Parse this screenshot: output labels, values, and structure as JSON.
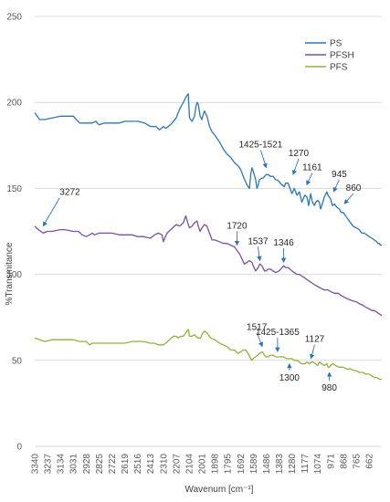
{
  "chart_data": {
    "type": "line",
    "title": "",
    "xlabel": "Wavenum [cm⁻¹]",
    "ylabel": "%Transmitance",
    "ylim": [
      0,
      250
    ],
    "yticks": [
      0,
      50,
      100,
      150,
      200,
      250
    ],
    "xlim": [
      3340,
      560
    ],
    "x_reversed": true,
    "xticks": [
      "3340",
      "3237",
      "3134",
      "3031",
      "2928",
      "2825",
      "2722",
      "2619",
      "2516",
      "2413",
      "2310",
      "2207",
      "2104",
      "2001",
      "1898",
      "1795",
      "1692",
      "1589",
      "1486",
      "1383",
      "1280",
      "1177",
      "1074",
      "971",
      "868",
      "765",
      "662"
    ],
    "grid": "horizontal",
    "legend_position": "top-right",
    "series": [
      {
        "name": "PS",
        "color": "#2E75B6",
        "x": [
          3340,
          3300,
          3260,
          3200,
          3134,
          3080,
          3031,
          2980,
          2928,
          2880,
          2850,
          2825,
          2780,
          2722,
          2660,
          2619,
          2560,
          2516,
          2460,
          2413,
          2370,
          2340,
          2310,
          2290,
          2270,
          2240,
          2207,
          2180,
          2165,
          2150,
          2130,
          2110,
          2100,
          2080,
          2060,
          2050,
          2040,
          2030,
          2015,
          2001,
          1990,
          1980,
          1960,
          1940,
          1920,
          1898,
          1860,
          1830,
          1800,
          1770,
          1740,
          1710,
          1690,
          1670,
          1640,
          1620,
          1610,
          1600,
          1589,
          1570,
          1560,
          1550,
          1540,
          1520,
          1510,
          1486,
          1470,
          1450,
          1430,
          1410,
          1400,
          1383,
          1360,
          1340,
          1330,
          1310,
          1300,
          1280,
          1260,
          1240,
          1220,
          1200,
          1177,
          1160,
          1145,
          1130,
          1115,
          1100,
          1090,
          1074,
          1060,
          1050,
          1040,
          1020,
          1000,
          990,
          971,
          955,
          940,
          920,
          900,
          885,
          868,
          850,
          830,
          810,
          790,
          765,
          740,
          720,
          700,
          680,
          662,
          640,
          620,
          600,
          590,
          580,
          570,
          560
        ],
        "y": [
          194,
          190,
          190,
          191,
          192,
          192,
          192,
          188,
          188,
          188,
          189,
          187,
          188,
          188,
          188,
          189,
          189,
          189,
          188,
          186,
          186,
          184,
          186,
          185,
          186,
          188,
          191,
          196,
          198,
          200,
          203,
          205,
          191,
          189,
          192,
          197,
          200,
          199,
          192,
          190,
          193,
          195,
          192,
          186,
          183,
          181,
          177,
          173,
          170,
          168,
          165,
          163,
          161,
          157,
          152,
          150,
          158,
          162,
          160,
          155,
          150,
          152,
          155,
          156,
          156,
          158,
          158,
          157,
          157,
          155,
          155,
          154,
          152,
          151,
          153,
          153,
          151,
          147,
          150,
          146,
          148,
          142,
          146,
          145,
          140,
          147,
          142,
          140,
          142,
          143,
          142,
          138,
          140,
          145,
          148,
          146,
          144,
          140,
          141,
          139,
          138,
          136,
          136,
          134,
          132,
          130,
          128,
          127,
          126,
          124,
          124,
          123,
          122,
          121,
          120,
          119,
          118,
          118,
          117,
          117
        ]
      },
      {
        "name": "PFSH",
        "color": "#7B4F9E",
        "x": [
          3340,
          3310,
          3272,
          3240,
          3200,
          3134,
          3100,
          3031,
          2990,
          2960,
          2928,
          2900,
          2880,
          2860,
          2825,
          2790,
          2722,
          2660,
          2619,
          2560,
          2516,
          2470,
          2413,
          2380,
          2350,
          2320,
          2310,
          2280,
          2250,
          2207,
          2180,
          2150,
          2130,
          2110,
          2100,
          2080,
          2060,
          2040,
          2030,
          2015,
          2001,
          1980,
          1960,
          1940,
          1920,
          1898,
          1860,
          1830,
          1800,
          1770,
          1740,
          1720,
          1700,
          1680,
          1660,
          1640,
          1620,
          1600,
          1589,
          1570,
          1550,
          1537,
          1520,
          1500,
          1486,
          1470,
          1450,
          1430,
          1410,
          1383,
          1370,
          1346,
          1330,
          1310,
          1280,
          1260,
          1240,
          1220,
          1200,
          1177,
          1160,
          1140,
          1120,
          1100,
          1074,
          1050,
          1020,
          990,
          971,
          940,
          910,
          890,
          868,
          840,
          810,
          765,
          740,
          710,
          690,
          662,
          640,
          620,
          600,
          580,
          560
        ],
        "y": [
          128,
          126,
          124,
          125,
          125,
          126,
          126,
          125,
          125,
          123,
          122,
          123,
          124,
          123,
          124,
          124,
          124,
          123,
          123,
          123,
          122,
          122,
          121,
          123,
          124,
          123,
          119,
          124,
          126,
          129,
          128,
          130,
          134,
          129,
          127,
          128,
          130,
          131,
          128,
          125,
          127,
          129,
          128,
          124,
          120,
          120,
          119,
          118,
          118,
          117,
          116,
          114,
          112,
          109,
          106,
          107,
          108,
          107,
          105,
          102,
          104,
          106,
          105,
          102,
          102,
          103,
          103,
          102,
          101,
          102,
          103,
          105,
          104,
          104,
          102,
          101,
          100,
          100,
          99,
          98,
          97,
          96,
          95,
          94,
          93,
          92,
          91,
          91,
          90,
          89,
          89,
          88,
          87,
          86,
          85,
          84,
          83,
          82,
          81,
          80,
          79,
          79,
          78,
          77,
          76
        ]
      },
      {
        "name": "PFS",
        "color": "#8DB33A",
        "x": [
          3340,
          3300,
          3260,
          3200,
          3134,
          3080,
          3031,
          2980,
          2928,
          2900,
          2880,
          2860,
          2825,
          2780,
          2722,
          2660,
          2619,
          2560,
          2516,
          2470,
          2413,
          2380,
          2350,
          2320,
          2310,
          2290,
          2260,
          2230,
          2207,
          2190,
          2170,
          2150,
          2130,
          2110,
          2100,
          2080,
          2060,
          2050,
          2030,
          2010,
          2001,
          1980,
          1960,
          1930,
          1898,
          1860,
          1830,
          1800,
          1770,
          1740,
          1710,
          1690,
          1670,
          1650,
          1630,
          1610,
          1600,
          1589,
          1570,
          1540,
          1517,
          1500,
          1486,
          1470,
          1450,
          1430,
          1410,
          1383,
          1350,
          1320,
          1300,
          1280,
          1260,
          1240,
          1220,
          1200,
          1177,
          1160,
          1140,
          1127,
          1110,
          1090,
          1074,
          1060,
          1040,
          1020,
          1000,
          990,
          980,
          971,
          950,
          930,
          900,
          868,
          840,
          810,
          780,
          765,
          740,
          710,
          690,
          662,
          640,
          620,
          600,
          580,
          560
        ],
        "y": [
          63,
          62,
          61,
          62,
          62,
          62,
          62,
          61,
          61,
          59,
          60,
          60,
          60,
          60,
          60,
          60,
          60,
          61,
          61,
          61,
          60,
          60,
          59,
          59,
          59,
          60,
          62,
          64,
          64,
          63,
          64,
          64,
          66,
          68,
          64,
          64,
          65,
          64,
          63,
          63,
          65,
          67,
          66,
          63,
          62,
          60,
          59,
          58,
          56,
          56,
          54,
          55,
          56,
          56,
          54,
          51,
          50,
          51,
          52,
          54,
          55,
          53,
          52,
          52,
          53,
          53,
          52,
          52,
          52,
          51,
          51,
          51,
          50,
          50,
          49,
          48,
          48,
          49,
          48,
          49,
          49,
          48,
          47,
          49,
          48,
          47,
          48,
          46,
          46,
          47,
          48,
          47,
          46,
          46,
          45,
          45,
          44,
          44,
          43,
          43,
          42,
          42,
          41,
          40,
          40,
          39,
          39
        ]
      }
    ],
    "annotations": [
      {
        "text": "3272",
        "x": 3272,
        "y": 126
      },
      {
        "text": "1425-1521",
        "x": 1486,
        "y": 160
      },
      {
        "text": "1270",
        "x": 1270,
        "y": 156
      },
      {
        "text": "1161",
        "x": 1161,
        "y": 150
      },
      {
        "text": "945",
        "x": 945,
        "y": 146
      },
      {
        "text": "860",
        "x": 860,
        "y": 139
      },
      {
        "text": "1720",
        "x": 1720,
        "y": 115
      },
      {
        "text": "1537",
        "x": 1537,
        "y": 106
      },
      {
        "text": "1346",
        "x": 1346,
        "y": 105
      },
      {
        "text": "1517",
        "x": 1517,
        "y": 56
      },
      {
        "text": "1425-1365",
        "x": 1395,
        "y": 53
      },
      {
        "text": "1127",
        "x": 1127,
        "y": 49
      },
      {
        "text": "1300",
        "x": 1300,
        "y": 50
      },
      {
        "text": "980",
        "x": 980,
        "y": 45
      }
    ]
  }
}
